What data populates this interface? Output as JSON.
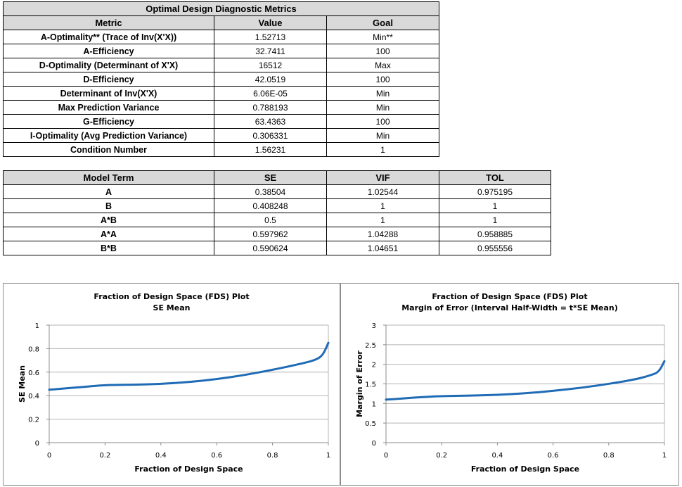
{
  "metrics_table": {
    "title": "Optimal Design Diagnostic Metrics",
    "headers": [
      "Metric",
      "Value",
      "Goal"
    ],
    "rows": [
      [
        "A-Optimality** (Trace of Inv(X'X))",
        "1.52713",
        "Min**"
      ],
      [
        "A-Efficiency",
        "32.7411",
        "100"
      ],
      [
        "D-Optimality (Determinant of X'X)",
        "16512",
        "Max"
      ],
      [
        "D-Efficiency",
        "42.0519",
        "100"
      ],
      [
        "Determinant of Inv(X'X)",
        "6.06E-05",
        "Min"
      ],
      [
        "Max Prediction Variance",
        "0.788193",
        "Min"
      ],
      [
        "G-Efficiency",
        "63.4363",
        "100"
      ],
      [
        "I-Optimality (Avg Prediction Variance)",
        "0.306331",
        "Min"
      ],
      [
        "Condition Number",
        "1.56231",
        "1"
      ]
    ]
  },
  "terms_table": {
    "headers": [
      "Model Term",
      "SE",
      "VIF",
      "TOL"
    ],
    "rows": [
      [
        "A",
        "0.38504",
        "1.02544",
        "0.975195"
      ],
      [
        "B",
        "0.408248",
        "1",
        "1"
      ],
      [
        "A*B",
        "0.5",
        "1",
        "1"
      ],
      [
        "A*A",
        "0.597962",
        "1.04288",
        "0.958885"
      ],
      [
        "B*B",
        "0.590624",
        "1.04651",
        "0.955556"
      ]
    ]
  },
  "chart_data": [
    {
      "type": "line",
      "title": "Fraction of Design Space (FDS) Plot",
      "subtitle": "SE Mean",
      "xlabel": "Fraction of Design Space",
      "ylabel": "SE Mean",
      "xlim": [
        0,
        1
      ],
      "ylim": [
        0,
        1
      ],
      "xticks": [
        0,
        0.2,
        0.4,
        0.6,
        0.8,
        1
      ],
      "yticks": [
        0,
        0.2,
        0.4,
        0.6,
        0.8,
        1
      ],
      "grid": true,
      "color": "#1f6bb5",
      "x": [
        0,
        0.05,
        0.1,
        0.15,
        0.2,
        0.3,
        0.4,
        0.5,
        0.6,
        0.7,
        0.8,
        0.9,
        0.95,
        0.98,
        1.0
      ],
      "y": [
        0.45,
        0.46,
        0.47,
        0.48,
        0.49,
        0.493,
        0.5,
        0.515,
        0.54,
        0.575,
        0.62,
        0.67,
        0.7,
        0.74,
        0.85
      ]
    },
    {
      "type": "line",
      "title": "Fraction of Design Space (FDS) Plot",
      "subtitle": "Margin of Error (Interval Half-Width = t*SE Mean)",
      "xlabel": "Fraction of Design Space",
      "ylabel": "Margin of Error",
      "xlim": [
        0,
        1
      ],
      "ylim": [
        0,
        3
      ],
      "xticks": [
        0,
        0.2,
        0.4,
        0.6,
        0.8,
        1
      ],
      "yticks": [
        0,
        0.5,
        1,
        1.5,
        2,
        2.5,
        3
      ],
      "grid": true,
      "color": "#1f6bb5",
      "x": [
        0,
        0.05,
        0.1,
        0.15,
        0.2,
        0.3,
        0.4,
        0.5,
        0.6,
        0.7,
        0.8,
        0.9,
        0.95,
        0.98,
        1.0
      ],
      "y": [
        1.1,
        1.12,
        1.15,
        1.17,
        1.19,
        1.2,
        1.22,
        1.26,
        1.32,
        1.4,
        1.5,
        1.62,
        1.72,
        1.8,
        2.08
      ]
    }
  ]
}
